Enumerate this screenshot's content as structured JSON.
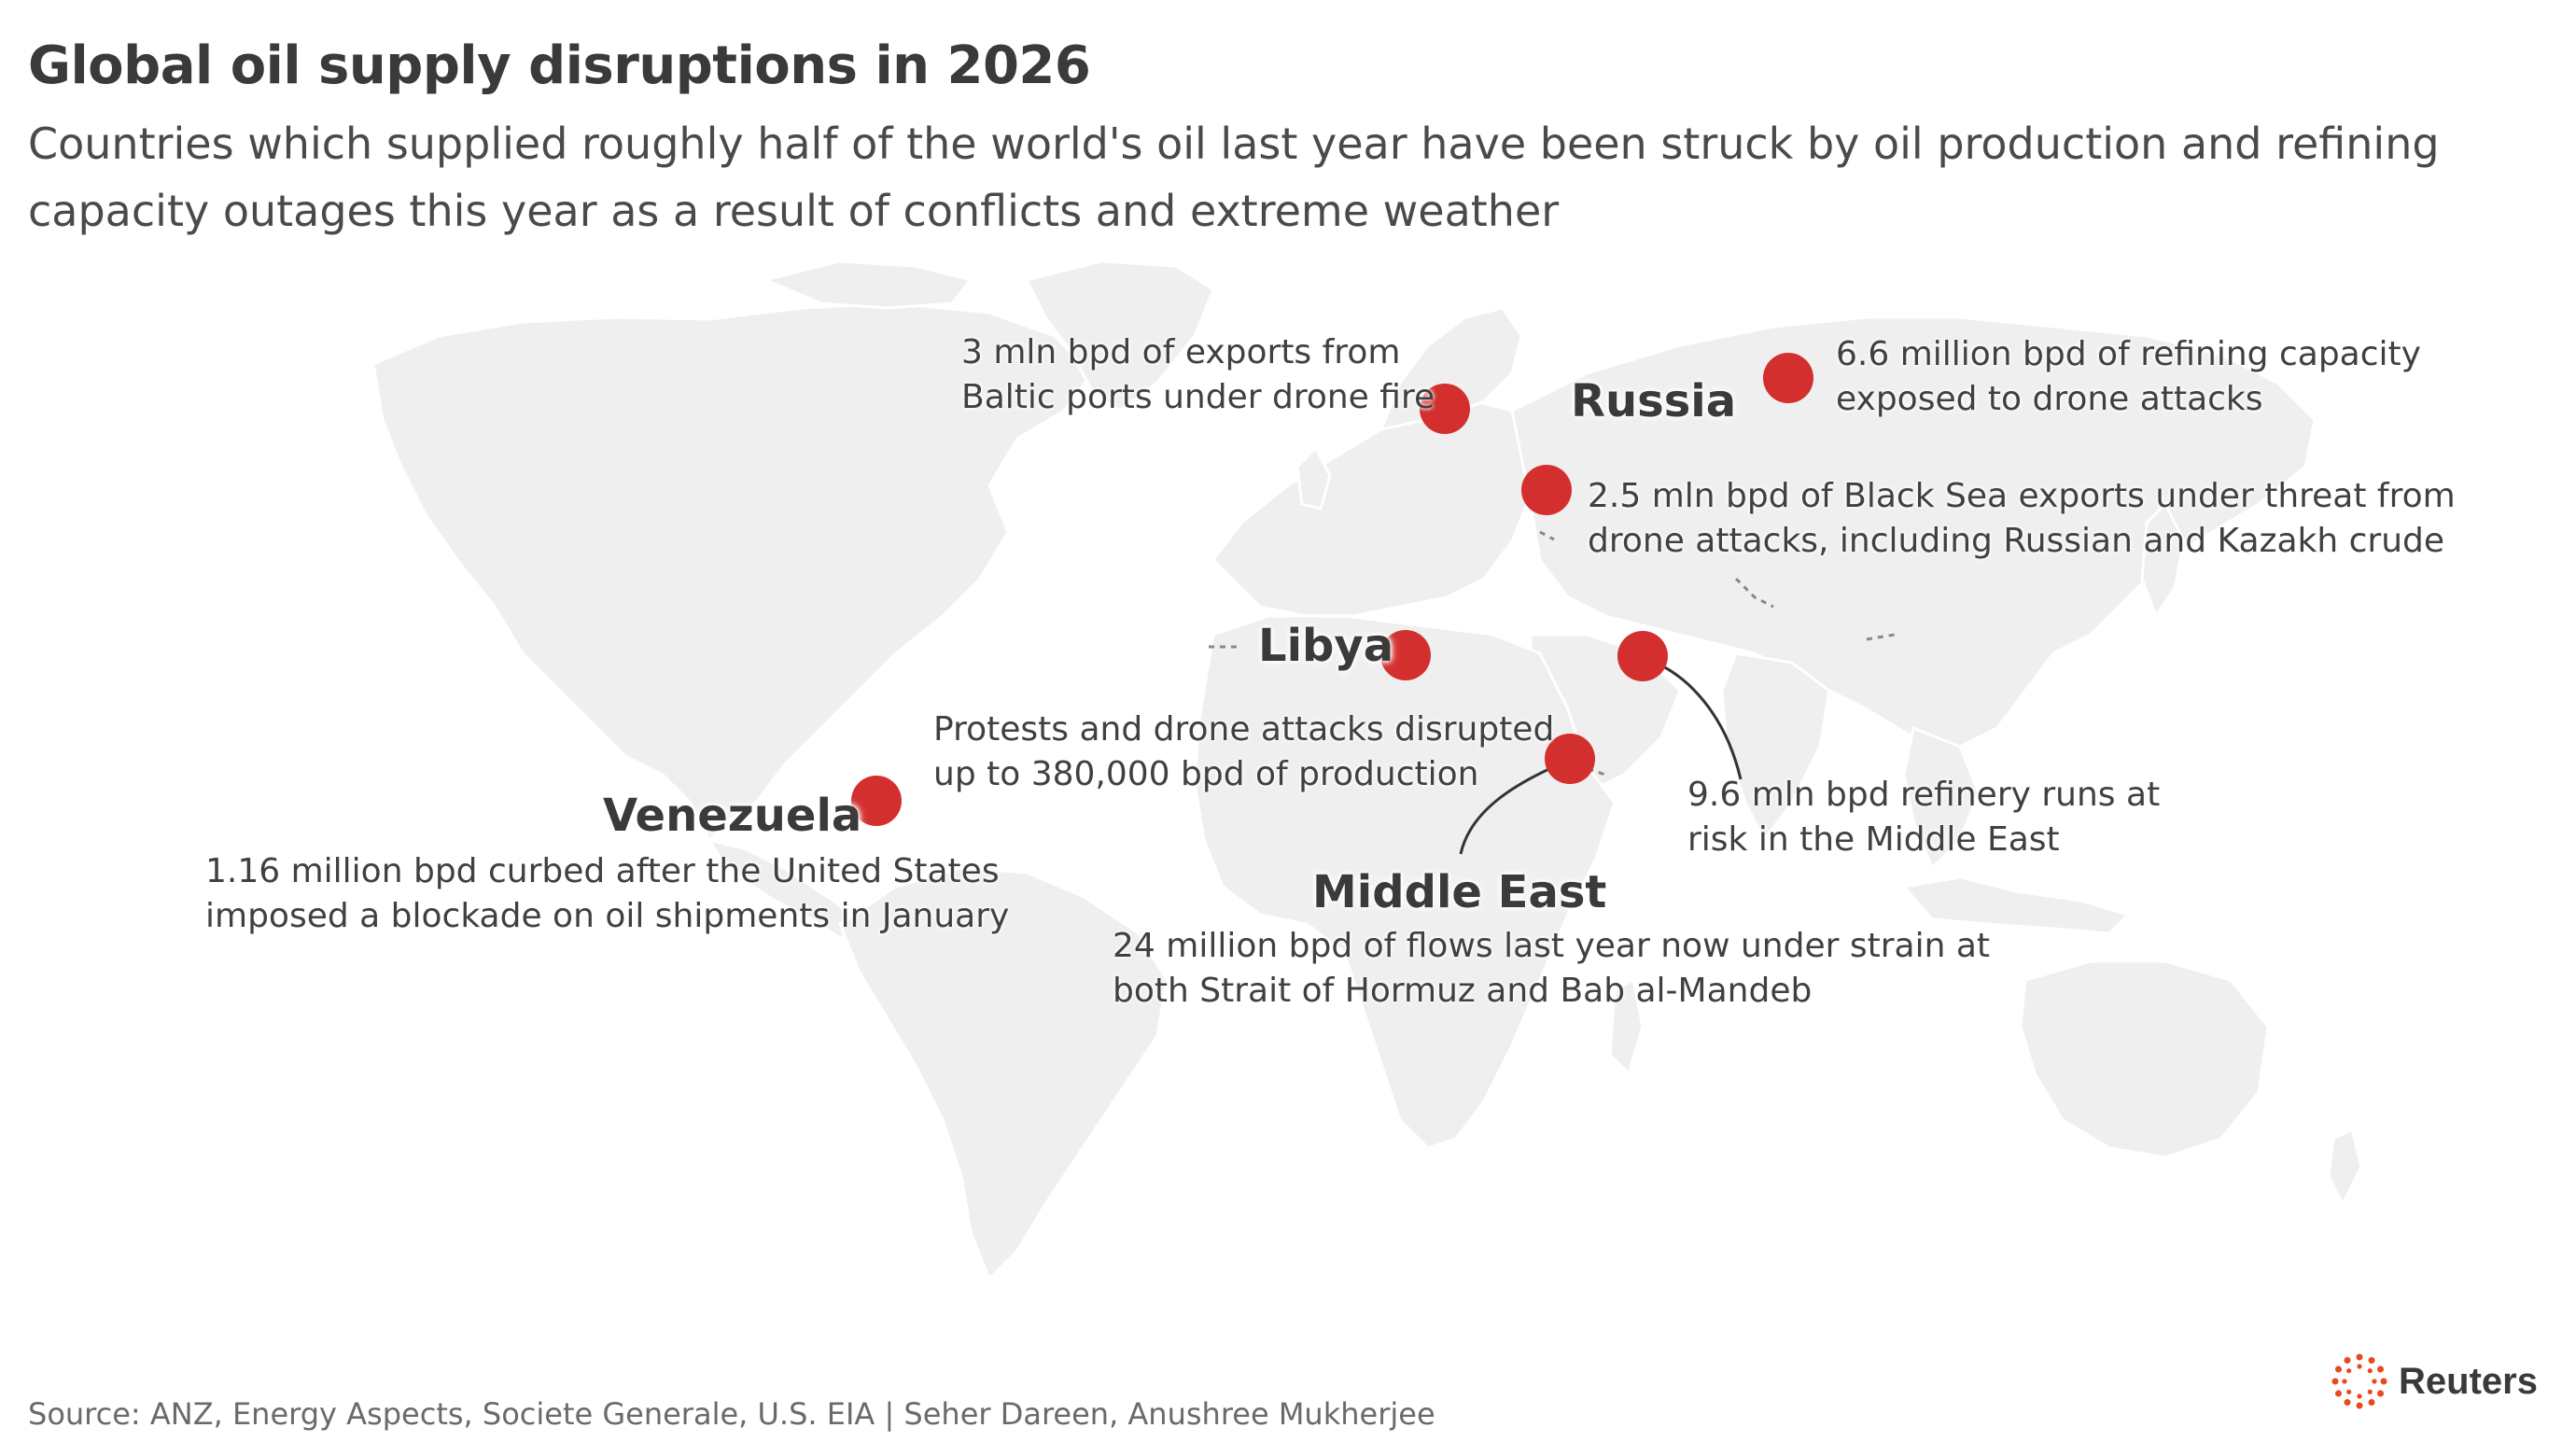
{
  "title": "Global oil supply disruptions in 2026",
  "subtitle": "Countries which supplied roughly half of the world's oil last year have been struck by oil production and refining capacity outages this year as a result of conflicts and extreme weather",
  "regions": {
    "russia": "Russia",
    "libya": "Libya",
    "venezuela": "Venezuela",
    "middle_east": "Middle East"
  },
  "annotations": {
    "baltic": [
      "3 mln bpd of exports from",
      "Baltic ports under drone fire"
    ],
    "refining": [
      "6.6 million bpd of refining capacity",
      "exposed to drone attacks"
    ],
    "black_sea": [
      "2.5 mln bpd of Black Sea exports under threat from",
      "drone attacks, including Russian and Kazakh crude"
    ],
    "libya": [
      "Protests and drone attacks disrupted",
      "up to 380,000 bpd of production"
    ],
    "venezuela": [
      "1.16 million bpd curbed after the United States",
      "imposed a blockade on oil shipments in January"
    ],
    "refinery_runs": [
      "9.6 mln bpd refinery runs at",
      "risk in the Middle East"
    ],
    "flows": [
      "24 million bpd of flows last year now under strain at",
      "both Strait of Hormuz and Bab al-Mandeb"
    ]
  },
  "source": "Source: ANZ, Energy Aspects, Societe Generale, U.S. EIA | Seher Dareen, Anushree Mukherjee",
  "logo_text": "Reuters",
  "colors": {
    "marker": "#d32f2f",
    "land": "#efefef",
    "logo_accent": "#e8491d"
  }
}
